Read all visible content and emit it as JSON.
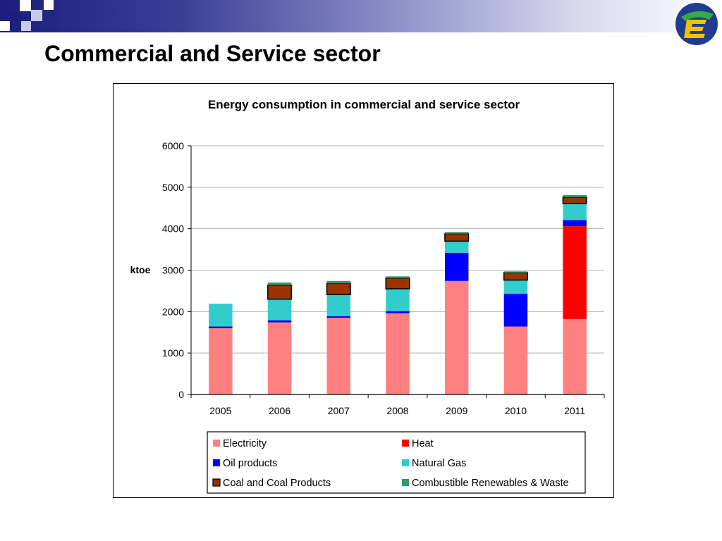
{
  "slide": {
    "title": "Commercial and Service sector"
  },
  "colors": {
    "header_dark": "#1b1e7a",
    "header_light": "#d7d9ee",
    "logo_blue": "#1f3d8c",
    "logo_yellow": "#f2c200",
    "logo_green": "#3aa84a"
  },
  "chart_data": {
    "type": "bar",
    "stacked": true,
    "title": "Energy consumption in commercial and service sector",
    "xlabel": "",
    "ylabel": "ktoe",
    "ylim": [
      0,
      6000
    ],
    "yticks": [
      0,
      1000,
      2000,
      3000,
      4000,
      5000,
      6000
    ],
    "grid": true,
    "legend_position": "bottom",
    "categories": [
      "2005",
      "2006",
      "2007",
      "2008",
      "2009",
      "2010",
      "2011"
    ],
    "series": [
      {
        "name": "Electricity",
        "color": "#ff8080",
        "values": [
          1600,
          1740,
          1850,
          1960,
          2740,
          1640,
          1820
        ]
      },
      {
        "name": "Heat",
        "color": "#ff0000",
        "values": [
          0,
          0,
          0,
          0,
          0,
          0,
          2240
        ]
      },
      {
        "name": "Oil products",
        "color": "#0000ff",
        "values": [
          40,
          50,
          40,
          50,
          680,
          790,
          150
        ]
      },
      {
        "name": "Natural Gas",
        "color": "#33cccc",
        "values": [
          550,
          510,
          520,
          540,
          280,
          330,
          400
        ]
      },
      {
        "name": "Coal and Coal Products",
        "color": "#993300",
        "values": [
          0,
          340,
          270,
          260,
          180,
          180,
          150
        ]
      },
      {
        "name": "Combustible Renewables & Waste",
        "color": "#339966",
        "values": [
          0,
          60,
          60,
          40,
          40,
          30,
          50
        ]
      }
    ]
  }
}
